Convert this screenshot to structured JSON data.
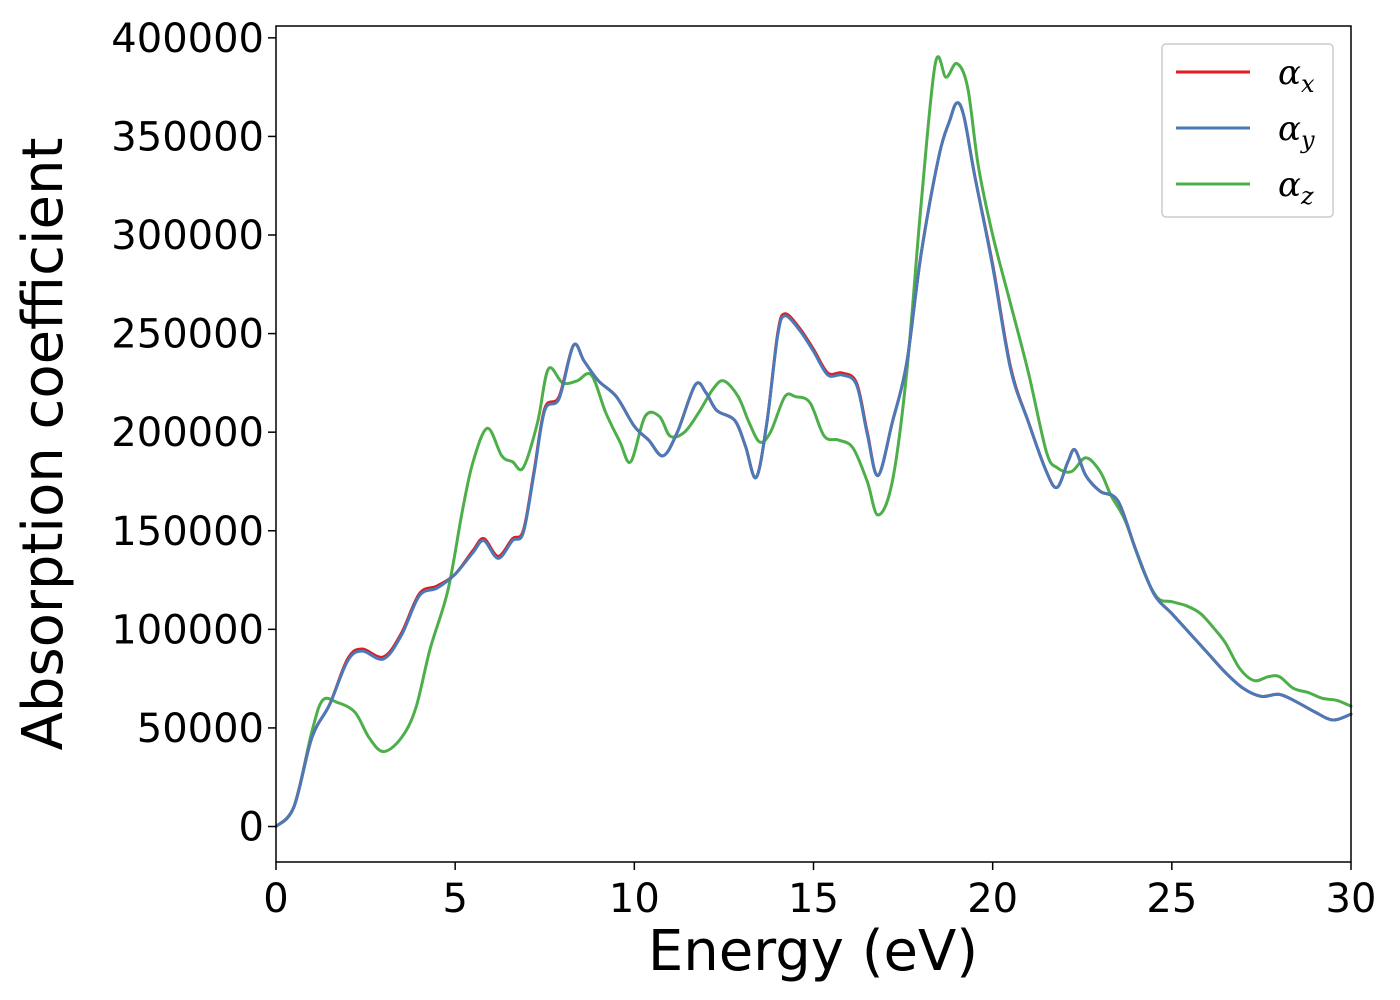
{
  "chart_data": {
    "type": "line",
    "xlabel": "Energy (eV)",
    "ylabel": "Absorption coefficient",
    "xlim": [
      0,
      30
    ],
    "ylim": [
      -18000,
      406000
    ],
    "xticks": [
      0,
      5,
      10,
      15,
      20,
      25,
      30
    ],
    "xtick_labels": [
      "0",
      "5",
      "10",
      "15",
      "20",
      "25",
      "30"
    ],
    "yticks": [
      0,
      50000,
      100000,
      150000,
      200000,
      250000,
      300000,
      350000,
      400000
    ],
    "ytick_labels": [
      "0",
      "50000",
      "100000",
      "150000",
      "200000",
      "250000",
      "300000",
      "350000",
      "400000"
    ],
    "grid": false,
    "legend_position": "top-right",
    "series": [
      {
        "name": "αx",
        "symbol": "α",
        "subscript": "x",
        "color": "#e41a1c",
        "points": [
          [
            0,
            0
          ],
          [
            0.5,
            10000
          ],
          [
            1,
            45000
          ],
          [
            1.5,
            62000
          ],
          [
            2,
            85000
          ],
          [
            2.4,
            90000
          ],
          [
            3,
            86000
          ],
          [
            3.5,
            98000
          ],
          [
            4,
            118000
          ],
          [
            4.5,
            122000
          ],
          [
            5,
            128000
          ],
          [
            5.5,
            140000
          ],
          [
            5.8,
            146000
          ],
          [
            6.2,
            137000
          ],
          [
            6.6,
            146000
          ],
          [
            6.9,
            150000
          ],
          [
            7.2,
            180000
          ],
          [
            7.5,
            212000
          ],
          [
            7.9,
            218000
          ],
          [
            8.3,
            244000
          ],
          [
            8.6,
            236000
          ],
          [
            9,
            226000
          ],
          [
            9.5,
            218000
          ],
          [
            10,
            203000
          ],
          [
            10.4,
            196000
          ],
          [
            10.8,
            188000
          ],
          [
            11.2,
            200000
          ],
          [
            11.7,
            224000
          ],
          [
            12,
            220000
          ],
          [
            12.3,
            211000
          ],
          [
            12.8,
            206000
          ],
          [
            13.1,
            193000
          ],
          [
            13.4,
            177000
          ],
          [
            13.7,
            205000
          ],
          [
            14,
            250000
          ],
          [
            14.2,
            260000
          ],
          [
            14.6,
            253000
          ],
          [
            15,
            242000
          ],
          [
            15.4,
            230000
          ],
          [
            15.8,
            230000
          ],
          [
            16.2,
            225000
          ],
          [
            16.5,
            200000
          ],
          [
            16.8,
            178000
          ],
          [
            17.2,
            205000
          ],
          [
            17.6,
            235000
          ],
          [
            18,
            290000
          ],
          [
            18.5,
            340000
          ],
          [
            18.8,
            358000
          ],
          [
            19,
            367000
          ],
          [
            19.2,
            360000
          ],
          [
            19.5,
            330000
          ],
          [
            20,
            285000
          ],
          [
            20.5,
            233000
          ],
          [
            21,
            205000
          ],
          [
            21.5,
            180000
          ],
          [
            21.8,
            172000
          ],
          [
            22.1,
            185000
          ],
          [
            22.3,
            191000
          ],
          [
            22.6,
            178000
          ],
          [
            23,
            170000
          ],
          [
            23.5,
            165000
          ],
          [
            24,
            140000
          ],
          [
            24.5,
            118000
          ],
          [
            25,
            108000
          ],
          [
            25.5,
            98000
          ],
          [
            26,
            88000
          ],
          [
            26.5,
            78000
          ],
          [
            27,
            70000
          ],
          [
            27.5,
            66000
          ],
          [
            28,
            67000
          ],
          [
            28.5,
            63000
          ],
          [
            29,
            58000
          ],
          [
            29.5,
            54000
          ],
          [
            30,
            57000
          ]
        ]
      },
      {
        "name": "αy",
        "symbol": "α",
        "subscript": "y",
        "color": "#4a7ab8",
        "points": [
          [
            0,
            0
          ],
          [
            0.5,
            10000
          ],
          [
            1,
            45000
          ],
          [
            1.5,
            62000
          ],
          [
            2,
            84000
          ],
          [
            2.4,
            89000
          ],
          [
            3,
            85000
          ],
          [
            3.5,
            97000
          ],
          [
            4,
            117000
          ],
          [
            4.5,
            121000
          ],
          [
            5,
            128000
          ],
          [
            5.5,
            139000
          ],
          [
            5.8,
            145000
          ],
          [
            6.2,
            136000
          ],
          [
            6.6,
            145000
          ],
          [
            6.9,
            149000
          ],
          [
            7.2,
            179000
          ],
          [
            7.5,
            211000
          ],
          [
            7.9,
            217000
          ],
          [
            8.3,
            244000
          ],
          [
            8.6,
            236000
          ],
          [
            9,
            226000
          ],
          [
            9.5,
            218000
          ],
          [
            10,
            203000
          ],
          [
            10.4,
            196000
          ],
          [
            10.8,
            188000
          ],
          [
            11.2,
            200000
          ],
          [
            11.7,
            224000
          ],
          [
            12,
            220000
          ],
          [
            12.3,
            211000
          ],
          [
            12.8,
            206000
          ],
          [
            13.1,
            193000
          ],
          [
            13.4,
            177000
          ],
          [
            13.7,
            205000
          ],
          [
            14,
            249000
          ],
          [
            14.2,
            259000
          ],
          [
            14.6,
            252000
          ],
          [
            15,
            241000
          ],
          [
            15.4,
            229000
          ],
          [
            15.8,
            229000
          ],
          [
            16.2,
            224000
          ],
          [
            16.5,
            199000
          ],
          [
            16.8,
            178000
          ],
          [
            17.2,
            205000
          ],
          [
            17.6,
            235000
          ],
          [
            18,
            290000
          ],
          [
            18.5,
            340000
          ],
          [
            18.8,
            358000
          ],
          [
            19,
            367000
          ],
          [
            19.2,
            360000
          ],
          [
            19.5,
            330000
          ],
          [
            20,
            284000
          ],
          [
            20.5,
            232000
          ],
          [
            21,
            205000
          ],
          [
            21.5,
            180000
          ],
          [
            21.8,
            172000
          ],
          [
            22.1,
            185000
          ],
          [
            22.3,
            191000
          ],
          [
            22.6,
            178000
          ],
          [
            23,
            170000
          ],
          [
            23.5,
            165000
          ],
          [
            24,
            140000
          ],
          [
            24.5,
            118000
          ],
          [
            25,
            108000
          ],
          [
            25.5,
            98000
          ],
          [
            26,
            88000
          ],
          [
            26.5,
            78000
          ],
          [
            27,
            70000
          ],
          [
            27.5,
            66000
          ],
          [
            28,
            67000
          ],
          [
            28.5,
            63000
          ],
          [
            29,
            58000
          ],
          [
            29.5,
            54000
          ],
          [
            30,
            57000
          ]
        ]
      },
      {
        "name": "αz",
        "symbol": "α",
        "subscript": "z",
        "color": "#4daf4a",
        "points": [
          [
            0,
            0
          ],
          [
            0.5,
            10000
          ],
          [
            1,
            48000
          ],
          [
            1.3,
            64000
          ],
          [
            1.7,
            63000
          ],
          [
            2.2,
            58000
          ],
          [
            2.6,
            45000
          ],
          [
            3,
            38000
          ],
          [
            3.5,
            45000
          ],
          [
            3.9,
            60000
          ],
          [
            4.3,
            90000
          ],
          [
            4.8,
            120000
          ],
          [
            5.2,
            160000
          ],
          [
            5.5,
            185000
          ],
          [
            5.9,
            202000
          ],
          [
            6.3,
            188000
          ],
          [
            6.6,
            185000
          ],
          [
            6.9,
            182000
          ],
          [
            7.3,
            205000
          ],
          [
            7.6,
            232000
          ],
          [
            8,
            225000
          ],
          [
            8.4,
            226000
          ],
          [
            8.8,
            229000
          ],
          [
            9.2,
            210000
          ],
          [
            9.6,
            195000
          ],
          [
            9.9,
            185000
          ],
          [
            10.3,
            208000
          ],
          [
            10.7,
            208000
          ],
          [
            11,
            198000
          ],
          [
            11.4,
            200000
          ],
          [
            11.8,
            210000
          ],
          [
            12.2,
            222000
          ],
          [
            12.5,
            226000
          ],
          [
            12.9,
            218000
          ],
          [
            13.2,
            205000
          ],
          [
            13.5,
            195000
          ],
          [
            13.8,
            200000
          ],
          [
            14.2,
            218000
          ],
          [
            14.5,
            218000
          ],
          [
            14.9,
            215000
          ],
          [
            15.3,
            198000
          ],
          [
            15.7,
            196000
          ],
          [
            16.1,
            192000
          ],
          [
            16.5,
            175000
          ],
          [
            16.8,
            158000
          ],
          [
            17.2,
            175000
          ],
          [
            17.6,
            230000
          ],
          [
            18,
            315000
          ],
          [
            18.4,
            387000
          ],
          [
            18.7,
            380000
          ],
          [
            19,
            387000
          ],
          [
            19.3,
            375000
          ],
          [
            19.6,
            335000
          ],
          [
            20,
            300000
          ],
          [
            20.5,
            265000
          ],
          [
            21,
            230000
          ],
          [
            21.5,
            190000
          ],
          [
            21.8,
            182000
          ],
          [
            22.2,
            180000
          ],
          [
            22.6,
            187000
          ],
          [
            23,
            180000
          ],
          [
            23.3,
            168000
          ],
          [
            23.7,
            155000
          ],
          [
            24.2,
            130000
          ],
          [
            24.6,
            116000
          ],
          [
            25,
            114000
          ],
          [
            25.4,
            112000
          ],
          [
            25.8,
            108000
          ],
          [
            26.2,
            100000
          ],
          [
            26.5,
            93000
          ],
          [
            26.9,
            80000
          ],
          [
            27.3,
            74000
          ],
          [
            27.7,
            76000
          ],
          [
            28,
            76000
          ],
          [
            28.4,
            70000
          ],
          [
            28.8,
            68000
          ],
          [
            29.2,
            65000
          ],
          [
            29.6,
            64000
          ],
          [
            30,
            61000
          ]
        ]
      }
    ]
  }
}
